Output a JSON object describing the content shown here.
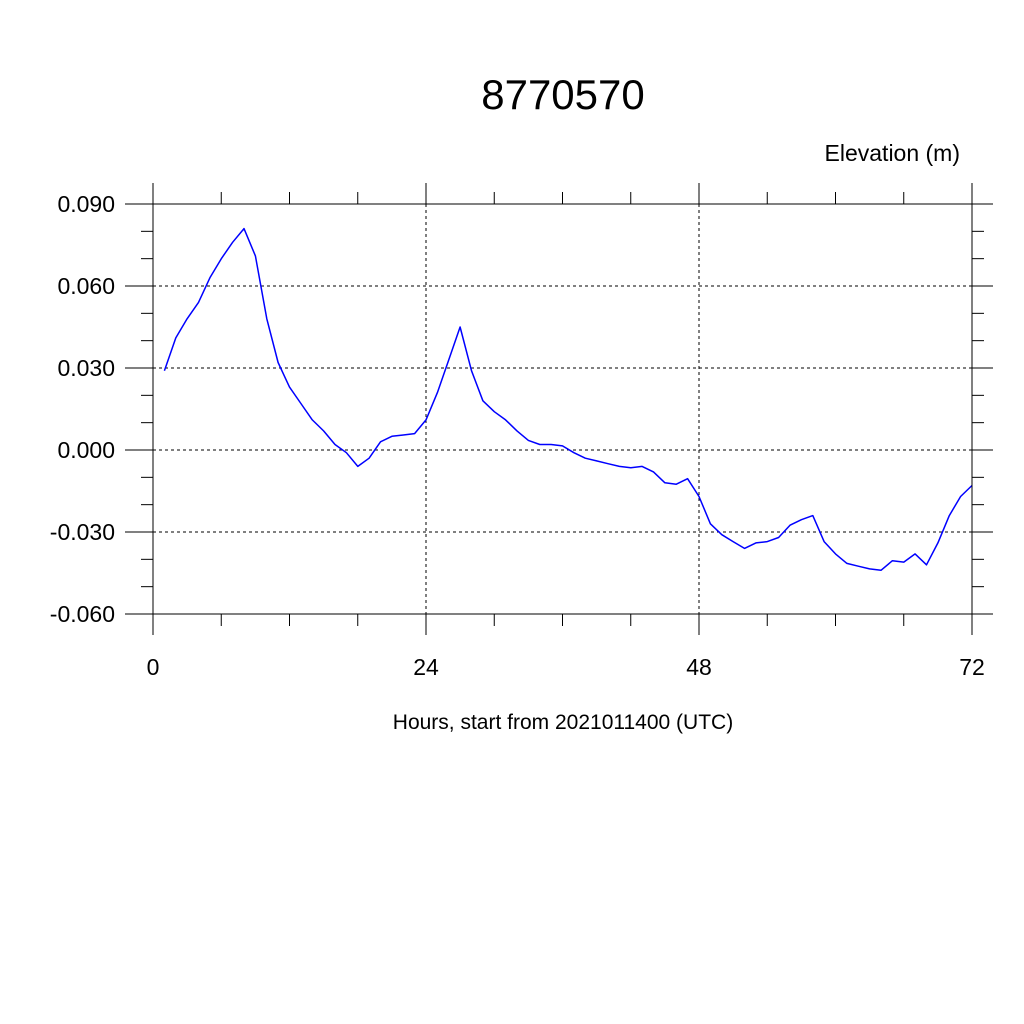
{
  "chart_data": {
    "type": "line",
    "title": "8770570",
    "ylabel": "Elevation (m)",
    "xlabel": "Hours, start from 2021011400 (UTC)",
    "xlim": [
      0,
      72
    ],
    "ylim": [
      -0.06,
      0.09
    ],
    "x_ticks": [
      0,
      24,
      48,
      72
    ],
    "x_tick_labels": [
      "0",
      "24",
      "48",
      "72"
    ],
    "y_ticks": [
      -0.06,
      -0.03,
      0.0,
      0.03,
      0.06,
      0.09
    ],
    "y_tick_labels": [
      "-0.060",
      "-0.030",
      "0.000",
      "0.030",
      "0.060",
      "0.090"
    ],
    "grid": true,
    "series": [
      {
        "color": "#0000ff",
        "x": [
          1,
          2,
          3,
          4,
          5,
          6,
          7,
          8,
          9,
          10,
          11,
          12,
          13,
          14,
          15,
          16,
          17,
          18,
          19,
          20,
          21,
          22,
          23,
          24,
          25,
          26,
          27,
          28,
          29,
          30,
          31,
          32,
          33,
          34,
          35,
          36,
          37,
          38,
          39,
          40,
          41,
          42,
          43,
          44,
          45,
          46,
          47,
          48,
          49,
          50,
          51,
          52,
          53,
          54,
          55,
          56,
          57,
          58,
          59,
          60,
          61,
          62,
          63,
          64,
          65,
          66,
          67,
          68,
          69,
          70,
          71,
          72
        ],
        "values": [
          0.029,
          0.041,
          0.048,
          0.054,
          0.063,
          0.07,
          0.076,
          0.081,
          0.071,
          0.048,
          0.032,
          0.023,
          0.017,
          0.011,
          0.007,
          0.002,
          -0.001,
          -0.006,
          -0.003,
          0.003,
          0.005,
          0.0055,
          0.006,
          0.011,
          0.021,
          0.033,
          0.045,
          0.029,
          0.018,
          0.014,
          0.011,
          0.007,
          0.0035,
          0.002,
          0.002,
          0.0015,
          -0.001,
          -0.003,
          -0.004,
          -0.005,
          -0.006,
          -0.0065,
          -0.006,
          -0.008,
          -0.012,
          -0.0125,
          -0.0105,
          -0.017,
          -0.027,
          -0.031,
          -0.0335,
          -0.036,
          -0.034,
          -0.0335,
          -0.032,
          -0.0275,
          -0.0255,
          -0.024,
          -0.0335,
          -0.038,
          -0.0415,
          -0.0425,
          -0.0435,
          -0.044,
          -0.0405,
          -0.041,
          -0.038,
          -0.042,
          -0.034,
          -0.024,
          -0.017,
          -0.013
        ]
      }
    ]
  }
}
